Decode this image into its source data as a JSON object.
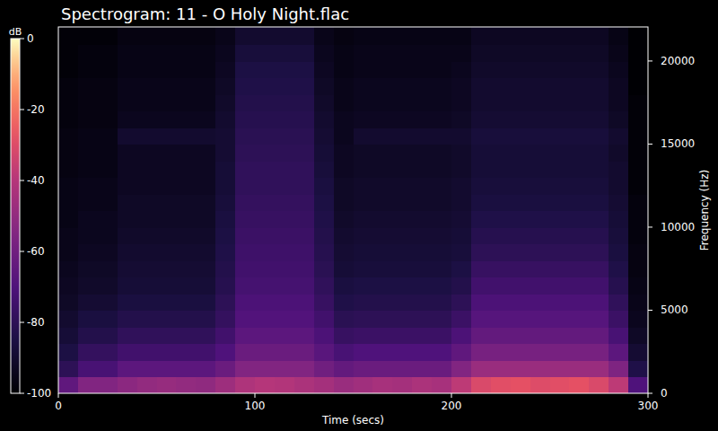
{
  "chart_data": {
    "type": "heatmap",
    "title": "Spectrogram: 11 - O Holy Night.flac",
    "x_label": "Time (secs)",
    "y_label": "Frequency (Hz)",
    "xlim": [
      0,
      300
    ],
    "xticks": [
      0,
      100,
      200,
      300
    ],
    "ylim": [
      0,
      22050
    ],
    "yticks": [
      0,
      5000,
      10000,
      15000,
      20000
    ],
    "grid": false,
    "x_bins": [
      0,
      10,
      20,
      30,
      40,
      50,
      60,
      70,
      80,
      90,
      100,
      110,
      120,
      130,
      140,
      150,
      160,
      170,
      180,
      190,
      200,
      210,
      220,
      230,
      240,
      250,
      260,
      270,
      280,
      290,
      300
    ],
    "y_bins": [
      0,
      1000,
      2000,
      3000,
      4000,
      5000,
      6000,
      7000,
      8000,
      9000,
      10000,
      11000,
      12000,
      13000,
      14000,
      15000,
      16000,
      17000,
      18000,
      19000,
      20000,
      21000,
      22050
    ],
    "cells": [
      [
        -65,
        -55,
        -55,
        -52,
        -50,
        -49,
        -50,
        -51,
        -47,
        -42,
        -40,
        -41,
        -43,
        -45,
        -48,
        -46,
        -44,
        -45,
        -43,
        -44,
        -38,
        -31,
        -29,
        -28,
        -30,
        -29,
        -28,
        -31,
        -38,
        -70
      ],
      [
        -80,
        -72,
        -72,
        -66,
        -66,
        -66,
        -66,
        -66,
        -62,
        -55,
        -55,
        -55,
        -55,
        -60,
        -64,
        -62,
        -62,
        -62,
        -62,
        -62,
        -55,
        -48,
        -48,
        -48,
        -48,
        -48,
        -48,
        -48,
        -56,
        -84
      ],
      [
        -85,
        -78,
        -78,
        -74,
        -74,
        -74,
        -74,
        -74,
        -70,
        -62,
        -62,
        -62,
        -62,
        -67,
        -72,
        -70,
        -70,
        -70,
        -70,
        -70,
        -65,
        -58,
        -58,
        -58,
        -58,
        -58,
        -58,
        -58,
        -66,
        -89
      ],
      [
        -88,
        -83,
        -83,
        -79,
        -79,
        -79,
        -79,
        -79,
        -74,
        -66,
        -66,
        -66,
        -66,
        -71,
        -77,
        -76,
        -76,
        -76,
        -76,
        -76,
        -71,
        -64,
        -64,
        -64,
        -64,
        -64,
        -64,
        -64,
        -72,
        -92
      ],
      [
        -90,
        -86,
        -86,
        -83,
        -83,
        -83,
        -83,
        -83,
        -78,
        -69,
        -69,
        -69,
        -69,
        -74,
        -81,
        -80,
        -80,
        -80,
        -80,
        -80,
        -76,
        -68,
        -68,
        -68,
        -68,
        -68,
        -68,
        -68,
        -76,
        -94
      ],
      [
        -92,
        -89,
        -89,
        -86,
        -86,
        -86,
        -86,
        -86,
        -80,
        -71,
        -71,
        -71,
        -71,
        -77,
        -84,
        -83,
        -83,
        -83,
        -83,
        -83,
        -80,
        -71,
        -71,
        -71,
        -71,
        -71,
        -71,
        -71,
        -79,
        -95
      ],
      [
        -93,
        -91,
        -91,
        -88,
        -88,
        -88,
        -88,
        -88,
        -82,
        -73,
        -73,
        -73,
        -73,
        -79,
        -86,
        -85,
        -85,
        -85,
        -85,
        -85,
        -83,
        -74,
        -74,
        -74,
        -74,
        -74,
        -74,
        -74,
        -82,
        -96
      ],
      [
        -94,
        -92,
        -92,
        -89,
        -89,
        -89,
        -89,
        -89,
        -83,
        -74,
        -74,
        -74,
        -74,
        -81,
        -88,
        -87,
        -87,
        -87,
        -87,
        -87,
        -85,
        -77,
        -77,
        -77,
        -77,
        -77,
        -77,
        -77,
        -84,
        -97
      ],
      [
        -95,
        -93,
        -93,
        -90,
        -90,
        -90,
        -90,
        -90,
        -84,
        -75,
        -75,
        -75,
        -75,
        -82,
        -89,
        -88,
        -88,
        -88,
        -88,
        -88,
        -87,
        -80,
        -80,
        -80,
        -80,
        -80,
        -80,
        -80,
        -86,
        -97
      ],
      [
        -95,
        -94,
        -94,
        -91,
        -91,
        -91,
        -91,
        -91,
        -85,
        -76,
        -76,
        -76,
        -76,
        -83,
        -90,
        -89,
        -89,
        -89,
        -89,
        -89,
        -88,
        -82,
        -82,
        -82,
        -82,
        -82,
        -82,
        -82,
        -87,
        -98
      ],
      [
        -96,
        -94,
        -94,
        -92,
        -92,
        -92,
        -92,
        -92,
        -86,
        -77,
        -77,
        -77,
        -77,
        -84,
        -91,
        -90,
        -90,
        -90,
        -90,
        -90,
        -89,
        -84,
        -84,
        -84,
        -84,
        -84,
        -84,
        -84,
        -88,
        -98
      ],
      [
        -96,
        -95,
        -95,
        -92,
        -92,
        -92,
        -92,
        -92,
        -87,
        -78,
        -78,
        -78,
        -78,
        -85,
        -92,
        -91,
        -91,
        -91,
        -91,
        -91,
        -90,
        -86,
        -86,
        -86,
        -86,
        -86,
        -86,
        -86,
        -89,
        -98
      ],
      [
        -96,
        -95,
        -95,
        -93,
        -93,
        -93,
        -93,
        -93,
        -88,
        -79,
        -79,
        -79,
        -79,
        -86,
        -92,
        -91,
        -91,
        -91,
        -91,
        -91,
        -90,
        -87,
        -87,
        -87,
        -87,
        -87,
        -87,
        -87,
        -90,
        -99
      ],
      [
        -97,
        -96,
        -96,
        -93,
        -93,
        -93,
        -93,
        -93,
        -88,
        -79,
        -79,
        -79,
        -79,
        -87,
        -93,
        -92,
        -92,
        -92,
        -92,
        -92,
        -91,
        -88,
        -88,
        -88,
        -88,
        -88,
        -88,
        -88,
        -90,
        -99
      ],
      [
        -97,
        -96,
        -96,
        -93,
        -93,
        -93,
        -93,
        -93,
        -89,
        -80,
        -80,
        -80,
        -80,
        -88,
        -93,
        -92,
        -92,
        -92,
        -92,
        -92,
        -91,
        -88,
        -88,
        -88,
        -88,
        -88,
        -88,
        -88,
        -91,
        -99
      ],
      [
        -97,
        -96,
        -96,
        -90,
        -90,
        -90,
        -90,
        -90,
        -89,
        -81,
        -81,
        -81,
        -81,
        -89,
        -94,
        -90,
        -90,
        -90,
        -90,
        -90,
        -90,
        -87,
        -87,
        -87,
        -87,
        -87,
        -87,
        -87,
        -90,
        -99
      ],
      [
        -98,
        -97,
        -97,
        -94,
        -94,
        -94,
        -94,
        -94,
        -90,
        -82,
        -82,
        -82,
        -82,
        -90,
        -94,
        -93,
        -93,
        -93,
        -93,
        -93,
        -92,
        -89,
        -89,
        -89,
        -89,
        -89,
        -89,
        -89,
        -92,
        -99
      ],
      [
        -98,
        -97,
        -97,
        -95,
        -95,
        -95,
        -95,
        -95,
        -91,
        -83,
        -83,
        -83,
        -83,
        -91,
        -95,
        -94,
        -94,
        -94,
        -94,
        -94,
        -93,
        -90,
        -90,
        -90,
        -90,
        -90,
        -90,
        -90,
        -93,
        -99
      ],
      [
        -98,
        -97,
        -97,
        -95,
        -95,
        -95,
        -95,
        -95,
        -92,
        -84,
        -84,
        -84,
        -84,
        -92,
        -95,
        -94,
        -94,
        -94,
        -94,
        -94,
        -93,
        -90,
        -90,
        -90,
        -90,
        -90,
        -90,
        -90,
        -93,
        -100
      ],
      [
        -99,
        -98,
        -98,
        -96,
        -96,
        -96,
        -96,
        -96,
        -93,
        -85,
        -85,
        -85,
        -85,
        -93,
        -96,
        -95,
        -95,
        -95,
        -95,
        -95,
        -94,
        -91,
        -91,
        -91,
        -91,
        -91,
        -91,
        -91,
        -94,
        -100
      ],
      [
        -99,
        -98,
        -98,
        -96,
        -96,
        -96,
        -96,
        -96,
        -94,
        -87,
        -87,
        -87,
        -87,
        -94,
        -96,
        -95,
        -95,
        -95,
        -95,
        -95,
        -95,
        -92,
        -92,
        -92,
        -92,
        -92,
        -92,
        -92,
        -95,
        -100
      ],
      [
        -99,
        -99,
        -99,
        -97,
        -97,
        -97,
        -97,
        -97,
        -95,
        -90,
        -90,
        -90,
        -90,
        -95,
        -97,
        -96,
        -96,
        -96,
        -96,
        -96,
        -96,
        -93,
        -93,
        -93,
        -93,
        -93,
        -93,
        -93,
        -96,
        -100
      ]
    ],
    "colorbar": {
      "label": "dB",
      "range": [
        -100,
        0
      ],
      "ticks": [
        0,
        -20,
        -40,
        -60,
        -80,
        -100
      ]
    }
  }
}
